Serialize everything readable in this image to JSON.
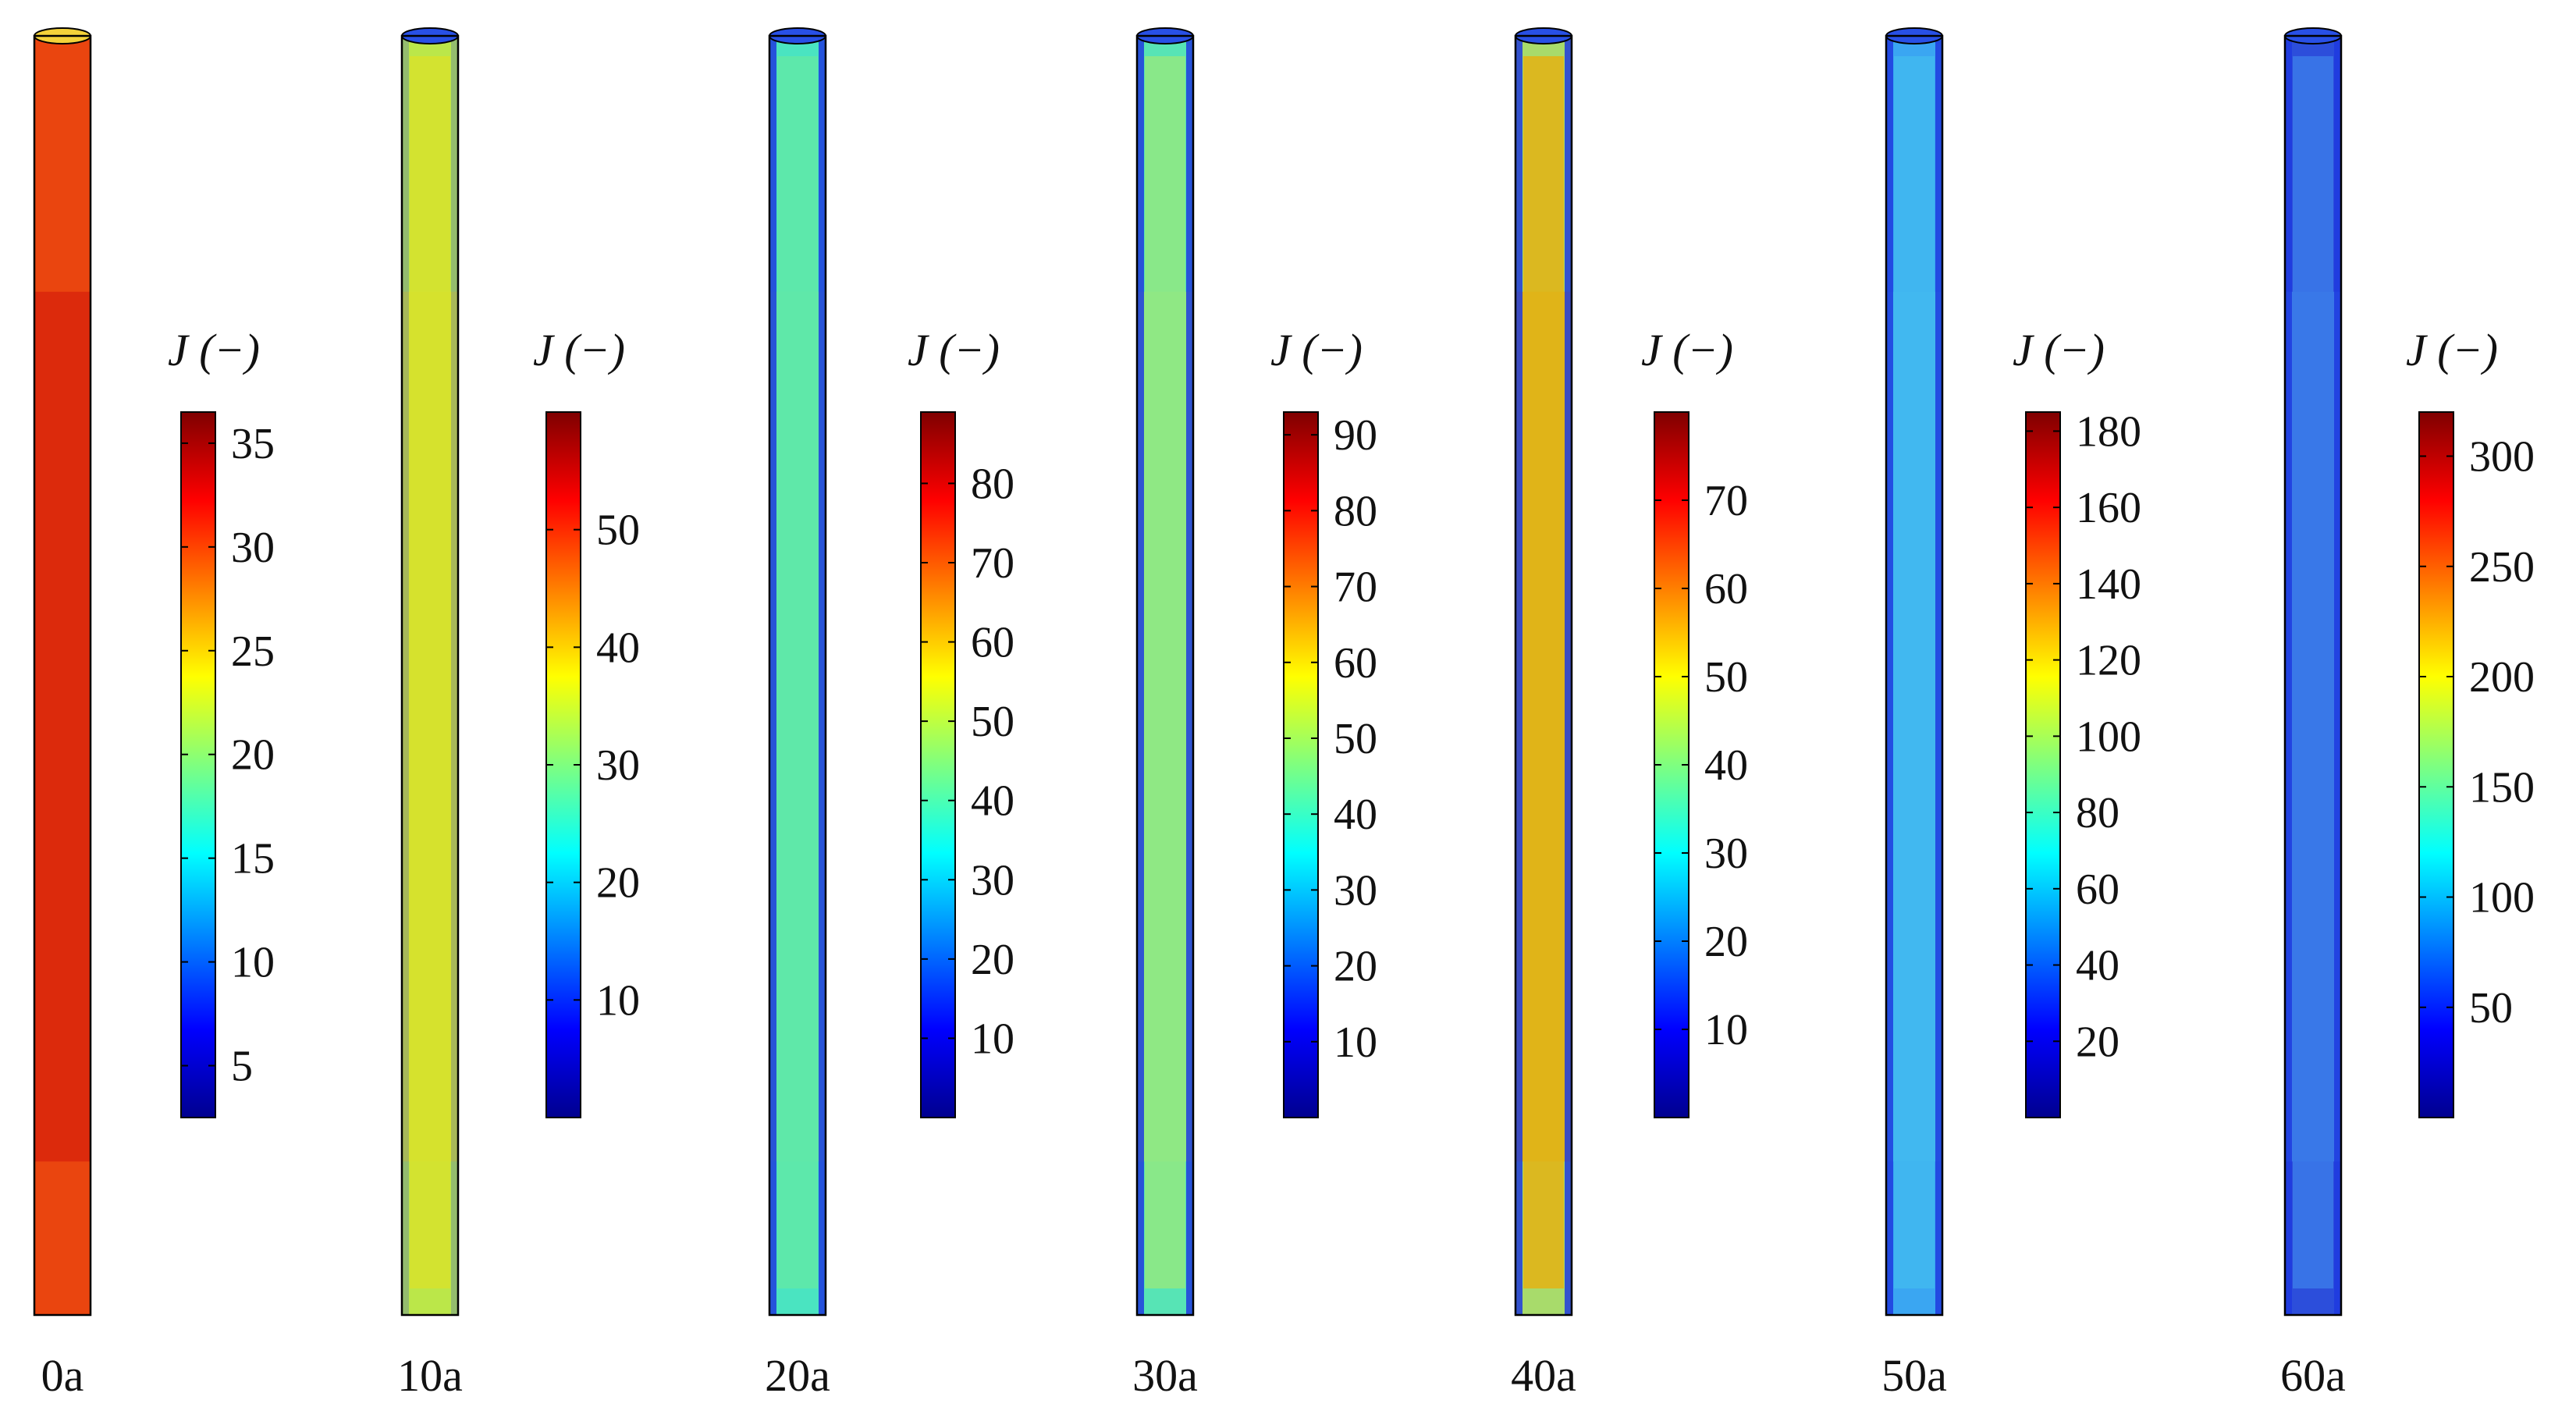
{
  "colorbar_title": "J (−)",
  "colormap": [
    "#00008f",
    "#0000ff",
    "#007fff",
    "#00ffff",
    "#7fff7f",
    "#ffff00",
    "#ff7f00",
    "#ff0000",
    "#7f0000"
  ],
  "panels": [
    {
      "time_label": "0a",
      "fill_top": "#ec4a10",
      "fill_main": "#dc2a0c",
      "colorbar": {
        "min": 2.5,
        "max": 36.5,
        "ticks": [
          5,
          10,
          15,
          20,
          25,
          30,
          35
        ]
      }
    },
    {
      "time_label": "10a",
      "fill_top": "#b6e84e",
      "fill_main": "#d6e22e",
      "colorbar": {
        "min": 0,
        "max": 60,
        "ticks": [
          10,
          20,
          30,
          40,
          50
        ]
      }
    },
    {
      "time_label": "20a",
      "fill_top": "#47e3c6",
      "fill_main": "#5fe8a8",
      "colorbar": {
        "min": 0,
        "max": 89,
        "ticks": [
          10,
          20,
          30,
          40,
          50,
          60,
          70,
          80
        ]
      }
    },
    {
      "time_label": "30a",
      "fill_top": "#4ee3bd",
      "fill_main": "#8fe884",
      "colorbar": {
        "min": 0,
        "max": 93,
        "ticks": [
          10,
          20,
          30,
          40,
          50,
          60,
          70,
          80,
          90
        ]
      }
    },
    {
      "time_label": "40a",
      "fill_top": "#9ee27a",
      "fill_main": "#e0b418",
      "colorbar": {
        "min": 0,
        "max": 80,
        "ticks": [
          10,
          20,
          30,
          40,
          50,
          60,
          70
        ]
      }
    },
    {
      "time_label": "50a",
      "fill_top": "#3aa2f2",
      "fill_main": "#41b8ef",
      "colorbar": {
        "min": 0,
        "max": 185,
        "ticks": [
          20,
          40,
          60,
          80,
          100,
          120,
          140,
          160,
          180
        ]
      }
    },
    {
      "time_label": "60a",
      "fill_top": "#2a46d8",
      "fill_main": "#3a78e8",
      "colorbar": {
        "min": 0,
        "max": 320,
        "ticks": [
          50,
          100,
          150,
          200,
          250,
          300
        ]
      }
    }
  ]
}
